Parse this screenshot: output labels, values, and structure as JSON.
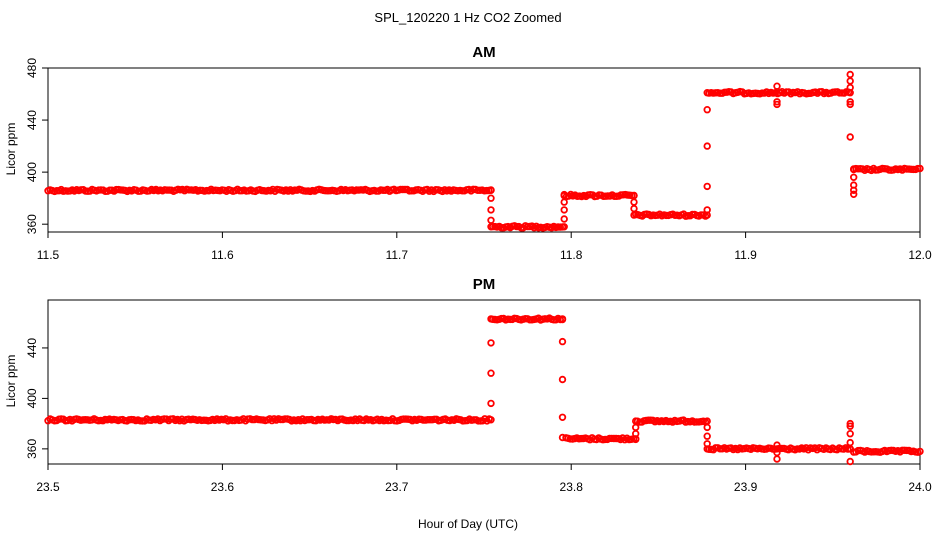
{
  "figure": {
    "title": "SPL_120220  1 Hz CO2 Zoomed",
    "xlabel": "Hour of Day (UTC)",
    "point_color": "#ff0000"
  },
  "chart_data": [
    {
      "type": "scatter",
      "title": "AM",
      "xlabel": "",
      "ylabel": "Licor ppm",
      "xlim": [
        11.5,
        12.0
      ],
      "ylim": [
        354,
        480
      ],
      "xticks": [
        11.5,
        11.6,
        11.7,
        11.8,
        11.9,
        12.0
      ],
      "xtick_labels": [
        "11.5",
        "11.6",
        "11.7",
        "11.8",
        "11.9",
        "12.0"
      ],
      "yticks": [
        360,
        400,
        440,
        480
      ],
      "ytick_labels": [
        "360",
        "400",
        "440",
        "480"
      ],
      "marker": "open-circle",
      "color": "#ff0000",
      "segments": [
        {
          "x_start": 11.5,
          "x_end": 11.754,
          "y": 386
        },
        {
          "x_start": 11.755,
          "x_end": 11.795,
          "y": 358
        },
        {
          "x_start": 11.796,
          "x_end": 11.836,
          "y": 382
        },
        {
          "x_start": 11.837,
          "x_end": 11.877,
          "y": 367
        },
        {
          "x_start": 11.879,
          "x_end": 11.959,
          "y": 461
        },
        {
          "x_start": 11.962,
          "x_end": 12.0,
          "y": 402
        }
      ],
      "transitions": [
        {
          "x": 11.754,
          "y": [
            386,
            380,
            371,
            363,
            358
          ]
        },
        {
          "x": 11.796,
          "y": [
            358,
            364,
            371,
            377,
            382
          ]
        },
        {
          "x": 11.836,
          "y": [
            382,
            377,
            372,
            367
          ]
        },
        {
          "x": 11.878,
          "y": [
            367,
            371,
            389,
            420,
            448,
            461
          ]
        },
        {
          "x": 11.918,
          "y": [
            466,
            454,
            452
          ]
        },
        {
          "x": 11.96,
          "y": [
            461,
            475,
            470,
            465,
            454,
            452,
            427
          ]
        },
        {
          "x": 11.962,
          "y": [
            386,
            383,
            390,
            396,
            402
          ]
        }
      ]
    },
    {
      "type": "scatter",
      "title": "PM",
      "xlabel": "",
      "ylabel": "Licor ppm",
      "xlim": [
        23.5,
        24.0
      ],
      "ylim": [
        348,
        478
      ],
      "xticks": [
        23.5,
        23.6,
        23.7,
        23.8,
        23.9,
        24.0
      ],
      "xtick_labels": [
        "23.5",
        "23.6",
        "23.7",
        "23.8",
        "23.9",
        "24.0"
      ],
      "yticks": [
        360,
        400,
        440
      ],
      "ytick_labels": [
        "360",
        "400",
        "440"
      ],
      "marker": "open-circle",
      "color": "#ff0000",
      "segments": [
        {
          "x_start": 23.5,
          "x_end": 23.753,
          "y": 383
        },
        {
          "x_start": 23.755,
          "x_end": 23.795,
          "y": 463
        },
        {
          "x_start": 23.797,
          "x_end": 23.837,
          "y": 368
        },
        {
          "x_start": 23.838,
          "x_end": 23.877,
          "y": 382
        },
        {
          "x_start": 23.879,
          "x_end": 23.96,
          "y": 360
        },
        {
          "x_start": 23.962,
          "x_end": 24.0,
          "y": 358
        }
      ],
      "transitions": [
        {
          "x": 23.754,
          "y": [
            383,
            396,
            420,
            444,
            463
          ]
        },
        {
          "x": 23.795,
          "y": [
            463,
            445,
            415,
            385,
            369
          ]
        },
        {
          "x": 23.837,
          "y": [
            368,
            372,
            377,
            382
          ]
        },
        {
          "x": 23.878,
          "y": [
            382,
            377,
            370,
            364,
            360
          ]
        },
        {
          "x": 23.918,
          "y": [
            363,
            352,
            357
          ]
        },
        {
          "x": 23.96,
          "y": [
            380,
            378,
            372,
            365,
            350,
            360
          ]
        }
      ]
    }
  ]
}
